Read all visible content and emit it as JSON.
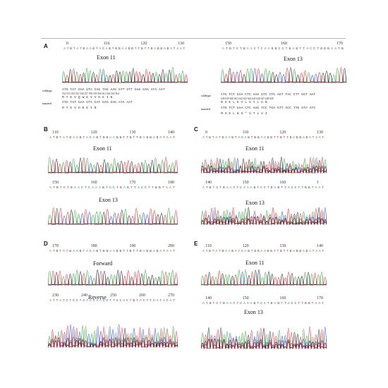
{
  "figure": {
    "panels": [
      {
        "id": "A-left",
        "letter": "A",
        "ticks": [
          "0",
          "110",
          "120",
          "130"
        ],
        "sequence_top": "ATGTATGAAGTACAGTGGAAGGTTGTTGAGGAGATAAT",
        "title": "Exon 11",
        "alignment": {
          "wildtype_label": "wildtype",
          "mutated_label": "mutated",
          "wildtype_dna": "ATG TAT GAA GTA CAG TGG AAG GTT GTT GAG GAG ATA AAT",
          "wildtype_pos": "552 553 554 555 556 557 558 559 560 561 562 563 564",
          "wildtype_aa": "M   Y   E   V   Q   W   K   V   V   E   E   I   N",
          "mutated_dna": "ATG TAT GAA GTA CAT GAG GAG ATA AAT",
          "mutated_aa": "M   Y   E   V   H   E   E   I   N"
        }
      },
      {
        "id": "A-right",
        "letter": "",
        "ticks": [
          "150",
          "160",
          "170"
        ],
        "sequence_top": "ATGTCTGAACTCAAGGCCTGAGTTACCTGGGAATG",
        "title": "Exon 13",
        "alignment": {
          "wildtype_label": "wildtype",
          "mutated_label": "mutated",
          "wildtype_dna": "ATG TCT GAA CTC AAA GTC CTG AGT TAC CTT GGT AAT",
          "wildtype_pos": "638 639 640 641 642 643 644 645 646 647 648 649",
          "wildtype_aa": "M   S   E   L   K   V   L   S   Y   L   G   N",
          "mutated_dna": "ATG TCT GAA CTC AAG TCC TGA GTT ACC TTG GTA ATC",
          "mutated_aa": "M   S   E   L   K   S   *   V   T   L   V   I"
        }
      },
      {
        "id": "B-top",
        "letter": "B",
        "ticks": [
          "110",
          "120",
          "130",
          "140"
        ],
        "sequence_top": "ATGTATGAAGTACAGTGGAAGGTTGTTGAGGAGATAAT",
        "title": "Exon 11"
      },
      {
        "id": "B-bottom",
        "letter": "",
        "ticks": [
          "150",
          "160",
          "170",
          "180"
        ],
        "sequence_top": "ATGTCTGAACTCAAAGTCCTGAGTTACCTTGGTAAT",
        "title": "Exon 13"
      },
      {
        "id": "C-top",
        "letter": "C",
        "ticks": [
          "0",
          "110",
          "120",
          "130"
        ],
        "sequence_top": "ATGTATGAAGTACAGTGGAAGGTTGTTGAGGAGATAAT",
        "title": "Exon 11"
      },
      {
        "id": "C-bottom",
        "letter": "",
        "ticks": [
          "140",
          "150",
          "160",
          "1"
        ],
        "sequence_top": "ATGTCTGAACTCAAAGTCCTGAGTTACCTTGGTAAT",
        "title": "Exon 13"
      },
      {
        "id": "D-top",
        "letter": "D",
        "ticks": [
          "170",
          "180",
          "190",
          "200"
        ],
        "sequence_top": "ATGTATGAAGTACAGTGGAAGGTTGTTGAGGAGATAAT",
        "title": "Forward"
      },
      {
        "id": "D-bottom",
        "letter": "",
        "ticks": [
          "230",
          "240",
          "250",
          "260",
          "270"
        ],
        "sequence_top": "ATTATCTCCTCAACAACCTTCCACTGTACTTCATACAT",
        "title": "Reverse"
      },
      {
        "id": "E-top",
        "letter": "E",
        "ticks": [
          "110",
          "120",
          "130",
          "140"
        ],
        "sequence_top": "ATGTATGAAGTACAGTGGAAGGTTGTTGAGGAGATAAT",
        "title": "Exon 11"
      },
      {
        "id": "E-bottom",
        "letter": "",
        "ticks": [
          "140",
          "150",
          "160",
          "170"
        ],
        "sequence_top": "ATGTCTGAACTCAAAGTCCTGAGTTACCTTGGTAAT",
        "title": "Exon 13"
      }
    ]
  },
  "colors": {
    "A": "#2e9e3a",
    "C": "#2f46c8",
    "G": "#1a1a1a",
    "T": "#d2282e"
  }
}
